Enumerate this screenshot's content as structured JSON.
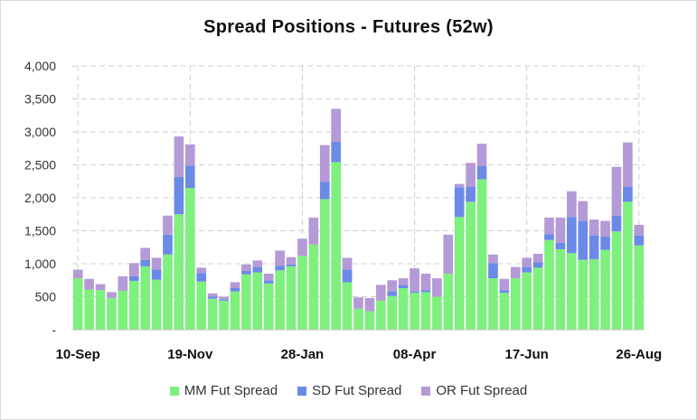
{
  "chart_data": {
    "type": "bar",
    "stacked": true,
    "title": "Spread Positions - Futures (52w)",
    "xlabel": "",
    "ylabel": "",
    "ylim": [
      0,
      4000
    ],
    "yticks": [
      {
        "value": 0,
        "label": "-"
      },
      {
        "value": 500,
        "label": "500"
      },
      {
        "value": 1000,
        "label": "1,000"
      },
      {
        "value": 1500,
        "label": "1,500"
      },
      {
        "value": 2000,
        "label": "2,000"
      },
      {
        "value": 2500,
        "label": "2,500"
      },
      {
        "value": 3000,
        "label": "3,000"
      },
      {
        "value": 3500,
        "label": "3,500"
      },
      {
        "value": 4000,
        "label": "4,000"
      }
    ],
    "xticks": [
      {
        "index": 0,
        "label": "10-Sep"
      },
      {
        "index": 10,
        "label": "19-Nov"
      },
      {
        "index": 20,
        "label": "28-Jan"
      },
      {
        "index": 30,
        "label": "08-Apr"
      },
      {
        "index": 40,
        "label": "17-Jun"
      },
      {
        "index": 50,
        "label": "26-Aug"
      }
    ],
    "grid": true,
    "legend_position": "bottom",
    "series": [
      {
        "name": "MM Fut Spread",
        "color": "#7ef07e",
        "values": [
          780,
          610,
          600,
          480,
          590,
          740,
          960,
          760,
          1140,
          1750,
          2150,
          730,
          470,
          440,
          580,
          840,
          870,
          700,
          900,
          960,
          1120,
          1290,
          1980,
          2540,
          720,
          320,
          280,
          440,
          510,
          630,
          560,
          570,
          500,
          850,
          1710,
          1940,
          2280,
          780,
          560,
          780,
          870,
          940,
          1360,
          1220,
          1160,
          1060,
          1070,
          1210,
          1490,
          1940,
          1280
        ]
      },
      {
        "name": "SD Fut Spread",
        "color": "#6b8ae8",
        "values": [
          0,
          0,
          0,
          0,
          0,
          70,
          100,
          150,
          300,
          570,
          340,
          130,
          30,
          20,
          50,
          50,
          80,
          50,
          70,
          30,
          0,
          0,
          260,
          310,
          190,
          0,
          0,
          0,
          70,
          50,
          20,
          30,
          0,
          0,
          450,
          230,
          200,
          230,
          40,
          0,
          80,
          80,
          90,
          100,
          550,
          590,
          360,
          200,
          240,
          230,
          150
        ]
      },
      {
        "name": "OR Fut Spread",
        "color": "#b49ad6",
        "values": [
          130,
          160,
          90,
          90,
          220,
          200,
          180,
          180,
          290,
          610,
          320,
          80,
          50,
          40,
          90,
          100,
          100,
          100,
          230,
          110,
          260,
          410,
          560,
          500,
          180,
          170,
          200,
          240,
          170,
          100,
          350,
          250,
          280,
          590,
          50,
          360,
          340,
          130,
          170,
          170,
          140,
          130,
          250,
          380,
          390,
          300,
          240,
          240,
          740,
          670,
          160
        ]
      }
    ]
  }
}
